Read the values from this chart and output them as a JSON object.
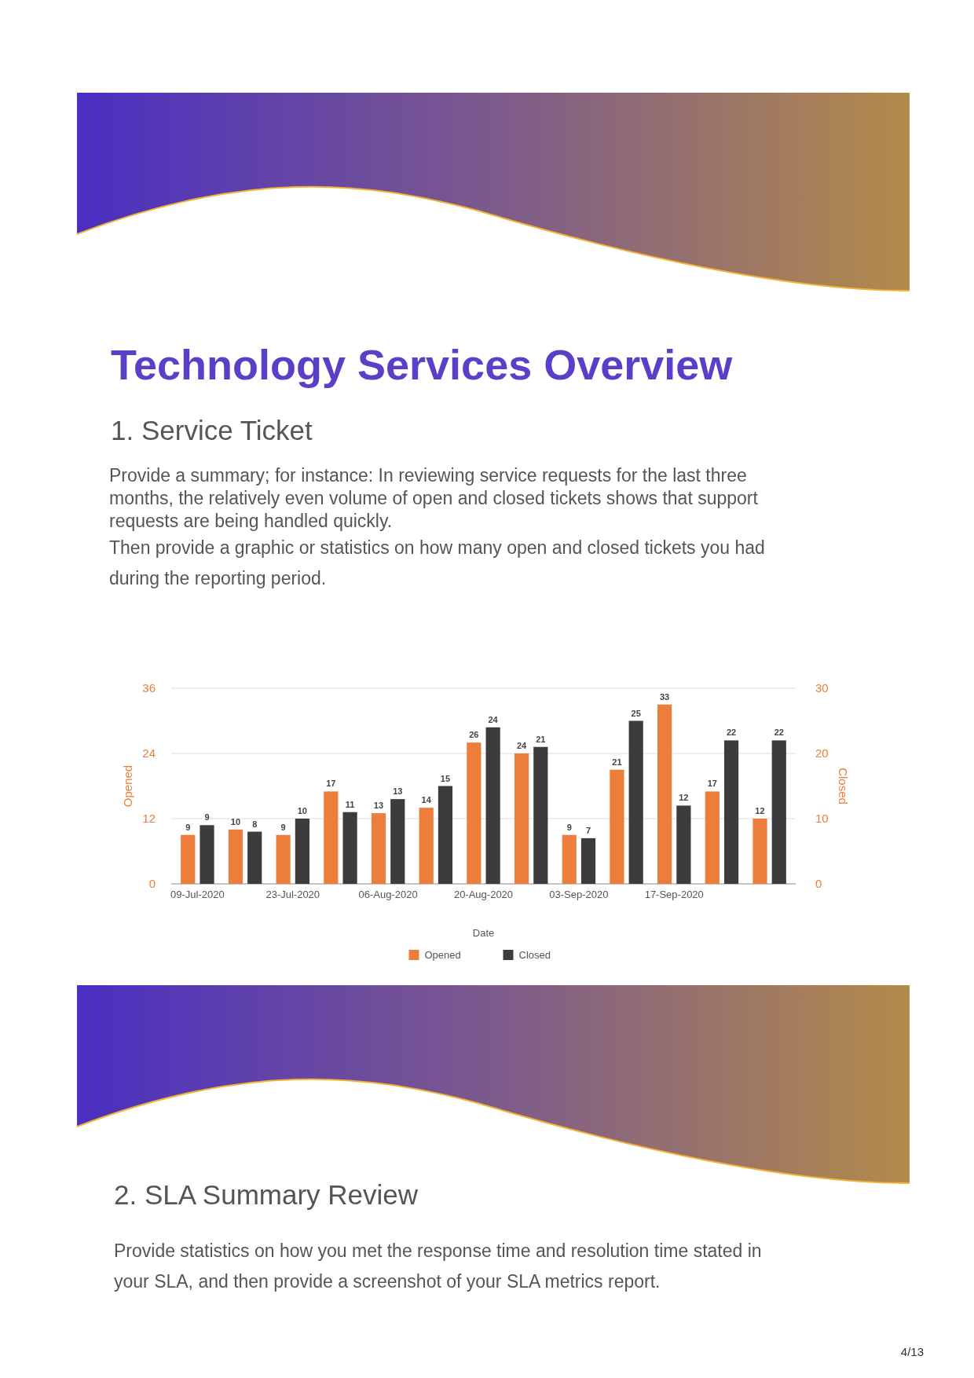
{
  "chart_data": {
    "type": "bar",
    "title": "Technology Services Overview",
    "subtitle": "1. Service Ticket",
    "annotations": [
      "Provide a summary; for instance: In reviewing service requests for the last three months, the relatively even volume of open and closed tickets shows that support requests are being handled quickly.",
      "Then provide a graphic or statistics on how many open and closed tickets you had during the reporting period.",
      "2. SLA Summary Review",
      "Provide statistics on how you met the response time and resolution time stated in your SLA, and then provide a screenshot of your SLA metrics report.",
      "4/13"
    ],
    "xlabel": "Date",
    "ylabel": "Opened",
    "y2label": "Closed",
    "categories": [
      "09-Jul-2020",
      null,
      "23-Jul-2020",
      null,
      "06-Aug-2020",
      null,
      "20-Aug-2020",
      null,
      "03-Sep-2020",
      null,
      "17-Sep-2020",
      null,
      null
    ],
    "series": [
      {
        "name": "Opened",
        "color": "#ed7d3a",
        "values": [
          9,
          10,
          9,
          17,
          13,
          14,
          26,
          24,
          9,
          21,
          33,
          17,
          12
        ]
      },
      {
        "name": "Closed",
        "color": "#3c3c3e",
        "axis": "y2",
        "values": [
          9,
          8,
          10,
          11,
          13,
          15,
          24,
          21,
          7,
          25,
          12,
          22,
          22
        ]
      }
    ],
    "ylim": [
      0,
      36
    ],
    "yticks": [
      0,
      12,
      24,
      36
    ],
    "y2lim": [
      0,
      30
    ],
    "y2ticks": [
      0,
      10,
      20,
      30
    ],
    "grid": "y",
    "legend": "bottom",
    "data_labels": true
  }
}
